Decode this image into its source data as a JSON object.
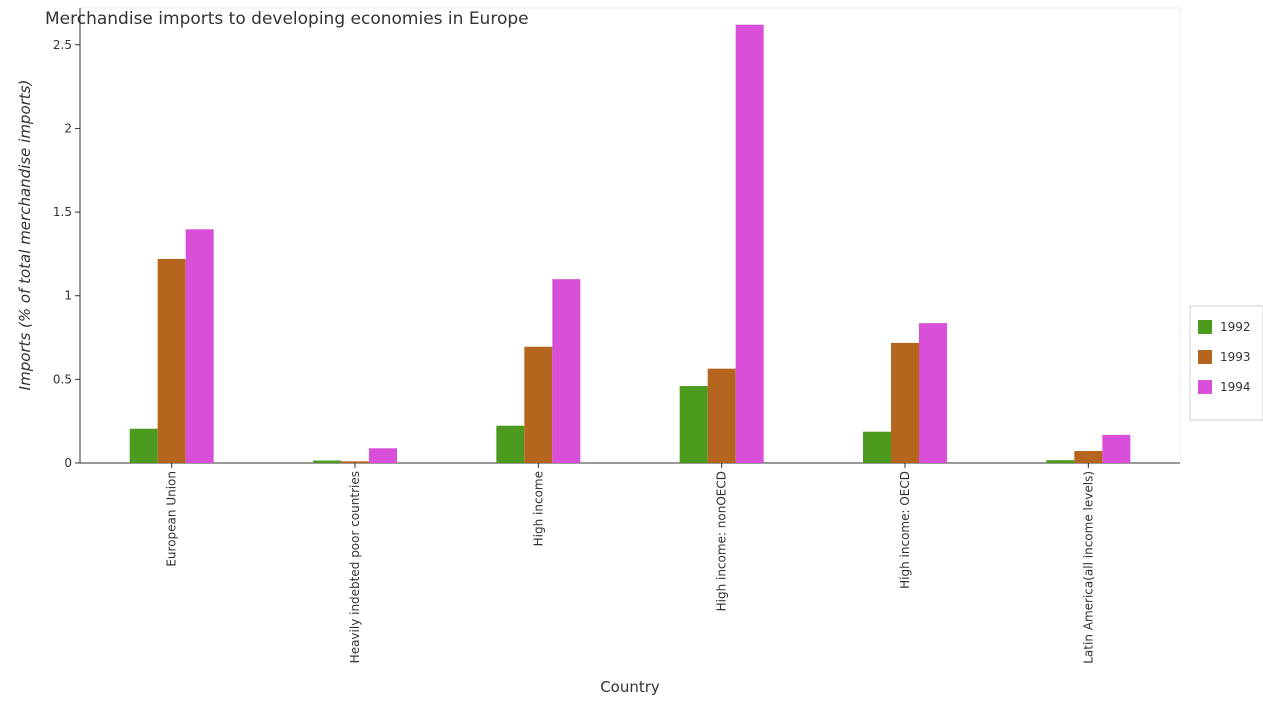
{
  "chart_data": {
    "type": "bar",
    "title": "Merchandise imports to developing economies in Europe",
    "x_label": "Country",
    "y_label": "Imports (% of total merchandise imports)",
    "categories": [
      "European Union",
      "Heavily indebted poor countries",
      "High income",
      "High income: nonOECD",
      "High income: OECD",
      "Latin America(all income levels)"
    ],
    "series": [
      {
        "name": "1992",
        "color": "#4c9a1e",
        "values": [
          0.205,
          0.015,
          0.223,
          0.46,
          0.187,
          0.017
        ]
      },
      {
        "name": "1993",
        "color": "#b5651d",
        "values": [
          1.22,
          0.01,
          0.695,
          0.564,
          0.718,
          0.072
        ]
      },
      {
        "name": "1994",
        "color": "#d94fd9",
        "values": [
          1.397,
          0.088,
          1.099,
          2.62,
          0.836,
          0.168
        ]
      }
    ],
    "ylim": [
      0,
      2.72
    ],
    "yticks": [
      0,
      0.5,
      1,
      1.5,
      2,
      2.5
    ],
    "legend": "right"
  }
}
